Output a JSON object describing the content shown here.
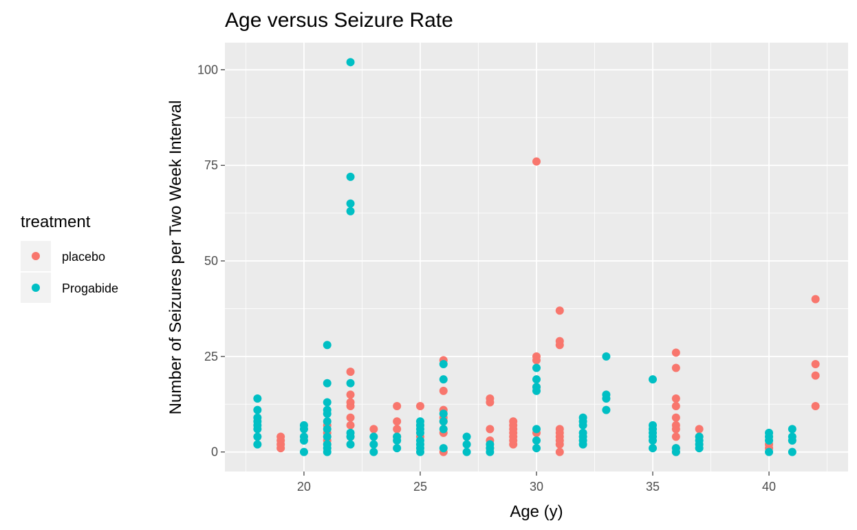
{
  "chart_data": {
    "type": "scatter",
    "title": "Age versus Seizure Rate",
    "xlabel": "Age (y)",
    "ylabel": "Number of Seizures per Two Week Interval",
    "xlim": [
      16.6,
      43.4
    ],
    "ylim": [
      -5.1,
      107.1
    ],
    "xticks": [
      20,
      25,
      30,
      35,
      40
    ],
    "yticks": [
      0,
      25,
      50,
      75,
      100
    ],
    "grid": true,
    "legend": {
      "title": "treatment",
      "position": "left",
      "entries": [
        "placebo",
        "Progabide"
      ]
    },
    "colors": {
      "placebo": "#F8766D",
      "Progabide": "#00BFC4"
    },
    "series": [
      {
        "name": "placebo",
        "points": [
          [
            19,
            1
          ],
          [
            19,
            2
          ],
          [
            19,
            3
          ],
          [
            19,
            4
          ],
          [
            21,
            3
          ],
          [
            21,
            5
          ],
          [
            21,
            7
          ],
          [
            22,
            4
          ],
          [
            22,
            7
          ],
          [
            22,
            9
          ],
          [
            22,
            12
          ],
          [
            22,
            13
          ],
          [
            22,
            15
          ],
          [
            22,
            21
          ],
          [
            23,
            6
          ],
          [
            24,
            4
          ],
          [
            24,
            6
          ],
          [
            24,
            8
          ],
          [
            24,
            12
          ],
          [
            25,
            4
          ],
          [
            25,
            7
          ],
          [
            25,
            12
          ],
          [
            26,
            0
          ],
          [
            26,
            5
          ],
          [
            26,
            8
          ],
          [
            26,
            9
          ],
          [
            26,
            11
          ],
          [
            26,
            16
          ],
          [
            26,
            24
          ],
          [
            28,
            1
          ],
          [
            28,
            3
          ],
          [
            28,
            6
          ],
          [
            28,
            13
          ],
          [
            28,
            14
          ],
          [
            29,
            2
          ],
          [
            29,
            3
          ],
          [
            29,
            4
          ],
          [
            29,
            5
          ],
          [
            29,
            6
          ],
          [
            29,
            7
          ],
          [
            29,
            8
          ],
          [
            30,
            5
          ],
          [
            30,
            17
          ],
          [
            30,
            24
          ],
          [
            30,
            25
          ],
          [
            30,
            76
          ],
          [
            31,
            0
          ],
          [
            31,
            2
          ],
          [
            31,
            3
          ],
          [
            31,
            4
          ],
          [
            31,
            5
          ],
          [
            31,
            6
          ],
          [
            31,
            28
          ],
          [
            31,
            29
          ],
          [
            31,
            37
          ],
          [
            36,
            0
          ],
          [
            36,
            1
          ],
          [
            36,
            4
          ],
          [
            36,
            6
          ],
          [
            36,
            7
          ],
          [
            36,
            9
          ],
          [
            36,
            12
          ],
          [
            36,
            14
          ],
          [
            36,
            22
          ],
          [
            36,
            26
          ],
          [
            37,
            4
          ],
          [
            37,
            6
          ],
          [
            40,
            1
          ],
          [
            40,
            2
          ],
          [
            42,
            12
          ],
          [
            42,
            20
          ],
          [
            42,
            23
          ],
          [
            42,
            40
          ]
        ]
      },
      {
        "name": "Progabide",
        "points": [
          [
            18,
            2
          ],
          [
            18,
            4
          ],
          [
            18,
            6
          ],
          [
            18,
            7
          ],
          [
            18,
            8
          ],
          [
            18,
            9
          ],
          [
            18,
            11
          ],
          [
            18,
            14
          ],
          [
            20,
            0
          ],
          [
            20,
            3
          ],
          [
            20,
            4
          ],
          [
            20,
            6
          ],
          [
            20,
            7
          ],
          [
            21,
            0
          ],
          [
            21,
            1
          ],
          [
            21,
            2
          ],
          [
            21,
            4
          ],
          [
            21,
            6
          ],
          [
            21,
            8
          ],
          [
            21,
            10
          ],
          [
            21,
            11
          ],
          [
            21,
            13
          ],
          [
            21,
            18
          ],
          [
            21,
            28
          ],
          [
            22,
            2
          ],
          [
            22,
            4
          ],
          [
            22,
            5
          ],
          [
            22,
            18
          ],
          [
            22,
            63
          ],
          [
            22,
            65
          ],
          [
            22,
            72
          ],
          [
            22,
            102
          ],
          [
            23,
            0
          ],
          [
            23,
            2
          ],
          [
            23,
            4
          ],
          [
            24,
            1
          ],
          [
            24,
            3
          ],
          [
            24,
            4
          ],
          [
            25,
            0
          ],
          [
            25,
            1
          ],
          [
            25,
            2
          ],
          [
            25,
            3
          ],
          [
            25,
            5
          ],
          [
            25,
            6
          ],
          [
            25,
            7
          ],
          [
            25,
            8
          ],
          [
            26,
            1
          ],
          [
            26,
            6
          ],
          [
            26,
            8
          ],
          [
            26,
            10
          ],
          [
            26,
            19
          ],
          [
            26,
            23
          ],
          [
            27,
            0
          ],
          [
            27,
            2
          ],
          [
            27,
            4
          ],
          [
            28,
            0
          ],
          [
            28,
            1
          ],
          [
            28,
            2
          ],
          [
            30,
            1
          ],
          [
            30,
            3
          ],
          [
            30,
            6
          ],
          [
            30,
            16
          ],
          [
            30,
            17
          ],
          [
            30,
            19
          ],
          [
            30,
            22
          ],
          [
            32,
            2
          ],
          [
            32,
            3
          ],
          [
            32,
            4
          ],
          [
            32,
            5
          ],
          [
            32,
            7
          ],
          [
            32,
            8
          ],
          [
            32,
            9
          ],
          [
            33,
            11
          ],
          [
            33,
            14
          ],
          [
            33,
            15
          ],
          [
            33,
            25
          ],
          [
            35,
            1
          ],
          [
            35,
            3
          ],
          [
            35,
            4
          ],
          [
            35,
            5
          ],
          [
            35,
            6
          ],
          [
            35,
            7
          ],
          [
            35,
            19
          ],
          [
            36,
            0
          ],
          [
            36,
            1
          ],
          [
            37,
            1
          ],
          [
            37,
            2
          ],
          [
            37,
            3
          ],
          [
            37,
            4
          ],
          [
            40,
            0
          ],
          [
            40,
            3
          ],
          [
            40,
            4
          ],
          [
            40,
            5
          ],
          [
            41,
            0
          ],
          [
            41,
            3
          ],
          [
            41,
            4
          ],
          [
            41,
            6
          ]
        ]
      }
    ]
  }
}
